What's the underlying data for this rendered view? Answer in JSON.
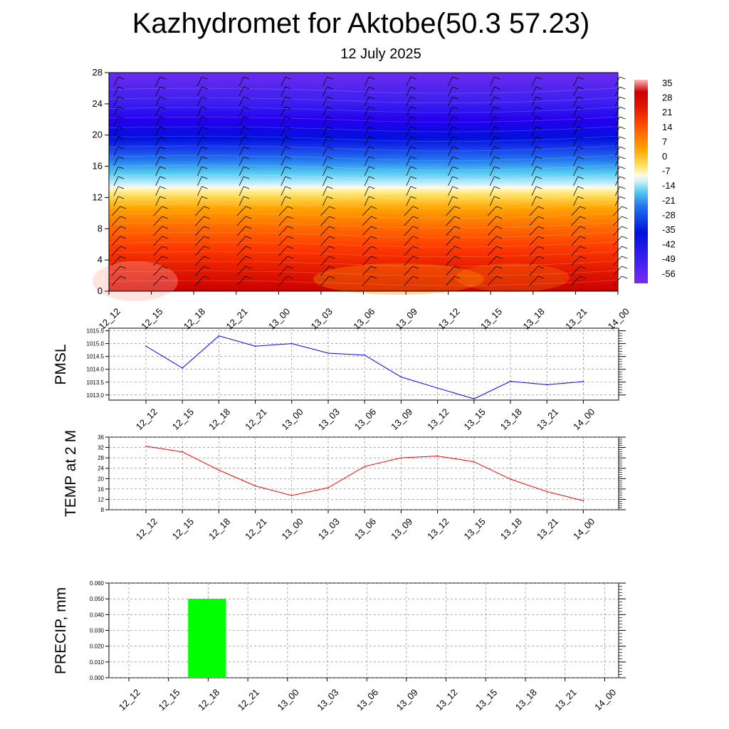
{
  "title": "Kazhydromet for Aktobe(50.3 57.23)",
  "subtitle": "12 July 2025",
  "time_labels": [
    "12_12",
    "12_15",
    "12_18",
    "12_21",
    "13_00",
    "13_03",
    "13_06",
    "13_09",
    "13_12",
    "13_15",
    "13_18",
    "13_21",
    "14_00"
  ],
  "colors": {
    "pmsl_line": "#0000ff",
    "temp_line": "#ff0000",
    "precip_bar": "#00ff00"
  },
  "chart_data": [
    {
      "type": "heatmap",
      "name": "cross-section",
      "x": [
        "12_12",
        "12_15",
        "12_18",
        "12_21",
        "13_00",
        "13_03",
        "13_06",
        "13_09",
        "13_12",
        "13_15",
        "13_18",
        "13_21",
        "14_00"
      ],
      "y_ticks": [
        0,
        4,
        8,
        12,
        16,
        20,
        24,
        28
      ],
      "ylim": [
        0,
        28
      ],
      "colorbar_labels": [
        "35",
        "28",
        "21",
        "14",
        "7",
        "0",
        "-7",
        "-14",
        "-21",
        "-28",
        "-35",
        "-42",
        "-49",
        "-56"
      ],
      "colormap": "blue-cyan-yellow-red",
      "overlay": "wind barbs"
    },
    {
      "type": "line",
      "name": "pmsl",
      "ylabel": "PMSL",
      "categories": [
        "12_12",
        "12_15",
        "12_18",
        "12_21",
        "13_00",
        "13_03",
        "13_06",
        "13_09",
        "13_12",
        "13_15",
        "13_18",
        "13_21",
        "14_00"
      ],
      "values": [
        1014.9,
        1014.05,
        1015.3,
        1014.9,
        1015.0,
        1014.63,
        1014.55,
        1013.7,
        1013.27,
        1012.85,
        1013.53,
        1013.4,
        1013.52
      ],
      "y_ticks": [
        "1013.0",
        "1013.5",
        "1014.0",
        "1014.5",
        "1015.0",
        "1015.5"
      ],
      "ylim": [
        1012.8,
        1015.6
      ],
      "grid": true
    },
    {
      "type": "line",
      "name": "temperature",
      "ylabel": "TEMP at 2 M",
      "categories": [
        "12_12",
        "12_15",
        "12_18",
        "12_21",
        "13_00",
        "13_03",
        "13_06",
        "13_09",
        "13_12",
        "13_15",
        "13_18",
        "13_21",
        "14_00"
      ],
      "values": [
        32.5,
        30.3,
        23.3,
        17.2,
        13.5,
        16.5,
        24.7,
        28.0,
        28.7,
        26.5,
        19.8,
        15.0,
        11.5
      ],
      "y_ticks": [
        "8",
        "12",
        "16",
        "20",
        "24",
        "28",
        "32",
        "36"
      ],
      "ylim": [
        8,
        36
      ],
      "grid": true
    },
    {
      "type": "bar",
      "name": "precipitation",
      "ylabel": "PRECIP, mm",
      "categories": [
        "12_12",
        "12_15",
        "12_18",
        "12_21",
        "13_00",
        "13_03",
        "13_06",
        "13_09",
        "13_12",
        "13_15",
        "13_18",
        "13_21",
        "14_00"
      ],
      "values": [
        0,
        0.05,
        0,
        0,
        0,
        0,
        0,
        0,
        0,
        0,
        0,
        0,
        0
      ],
      "y_ticks": [
        "0.000",
        "0.010",
        "0.020",
        "0.030",
        "0.040",
        "0.050",
        "0.060"
      ],
      "ylim": [
        0,
        0.06
      ],
      "grid": true
    }
  ]
}
